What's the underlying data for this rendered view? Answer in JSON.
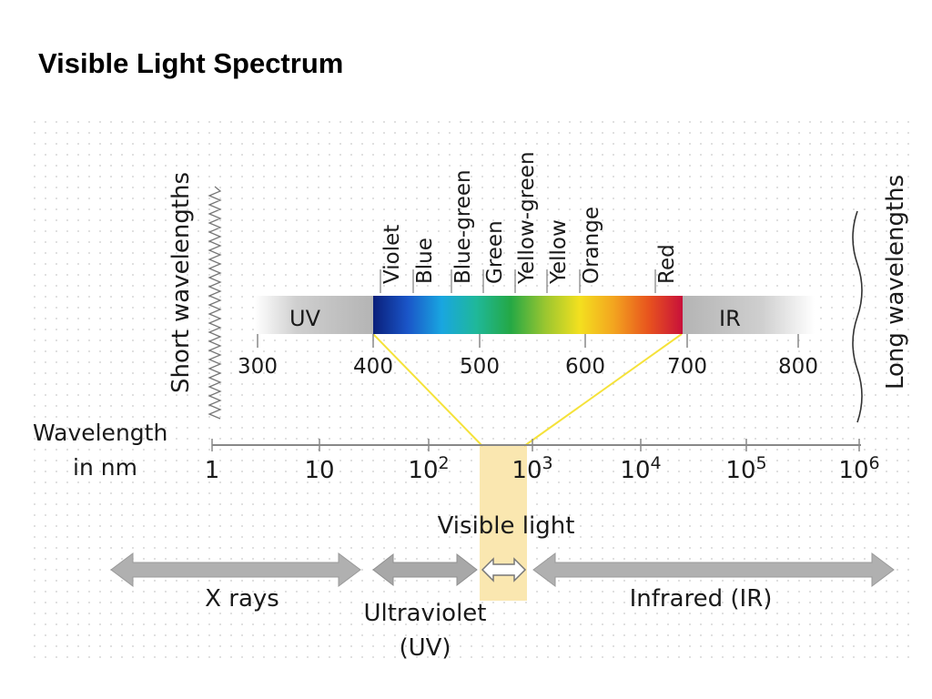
{
  "slide": {
    "title": "Visible Light Spectrum"
  },
  "spectrum": {
    "color_bands": [
      "Violet",
      "Blue",
      "Blue-green",
      "Green",
      "Yellow-green",
      "Yellow",
      "Orange",
      "Red"
    ],
    "band_uv_label": "UV",
    "band_ir_label": "IR",
    "nm_ticks": [
      "300",
      "400",
      "500",
      "600",
      "700",
      "800"
    ],
    "short_label": "Short wavelengths",
    "long_label": "Long wavelengths",
    "gradient_colors": [
      "#0a1f7a",
      "#1a55c8",
      "#19a6e0",
      "#1fb89a",
      "#24a845",
      "#9ac630",
      "#f3e01f",
      "#f3a41f",
      "#e8541e",
      "#c8103a"
    ]
  },
  "wavelength_axis": {
    "label_line1": "Wavelength",
    "label_line2": "in nm",
    "ticks": [
      {
        "base": "1",
        "exp": ""
      },
      {
        "base": "10",
        "exp": ""
      },
      {
        "base": "10",
        "exp": "2"
      },
      {
        "base": "10",
        "exp": "3"
      },
      {
        "base": "10",
        "exp": "4"
      },
      {
        "base": "10",
        "exp": "5"
      },
      {
        "base": "10",
        "exp": "6"
      }
    ]
  },
  "ranges": {
    "visible_label": "Visible light",
    "xrays_label": "X rays",
    "uv_line1": "Ultraviolet",
    "uv_line2": "(UV)",
    "ir_label": "Infrared (IR)",
    "highlight_color": "#fae7b0",
    "connector_color": "#f5e23a"
  }
}
